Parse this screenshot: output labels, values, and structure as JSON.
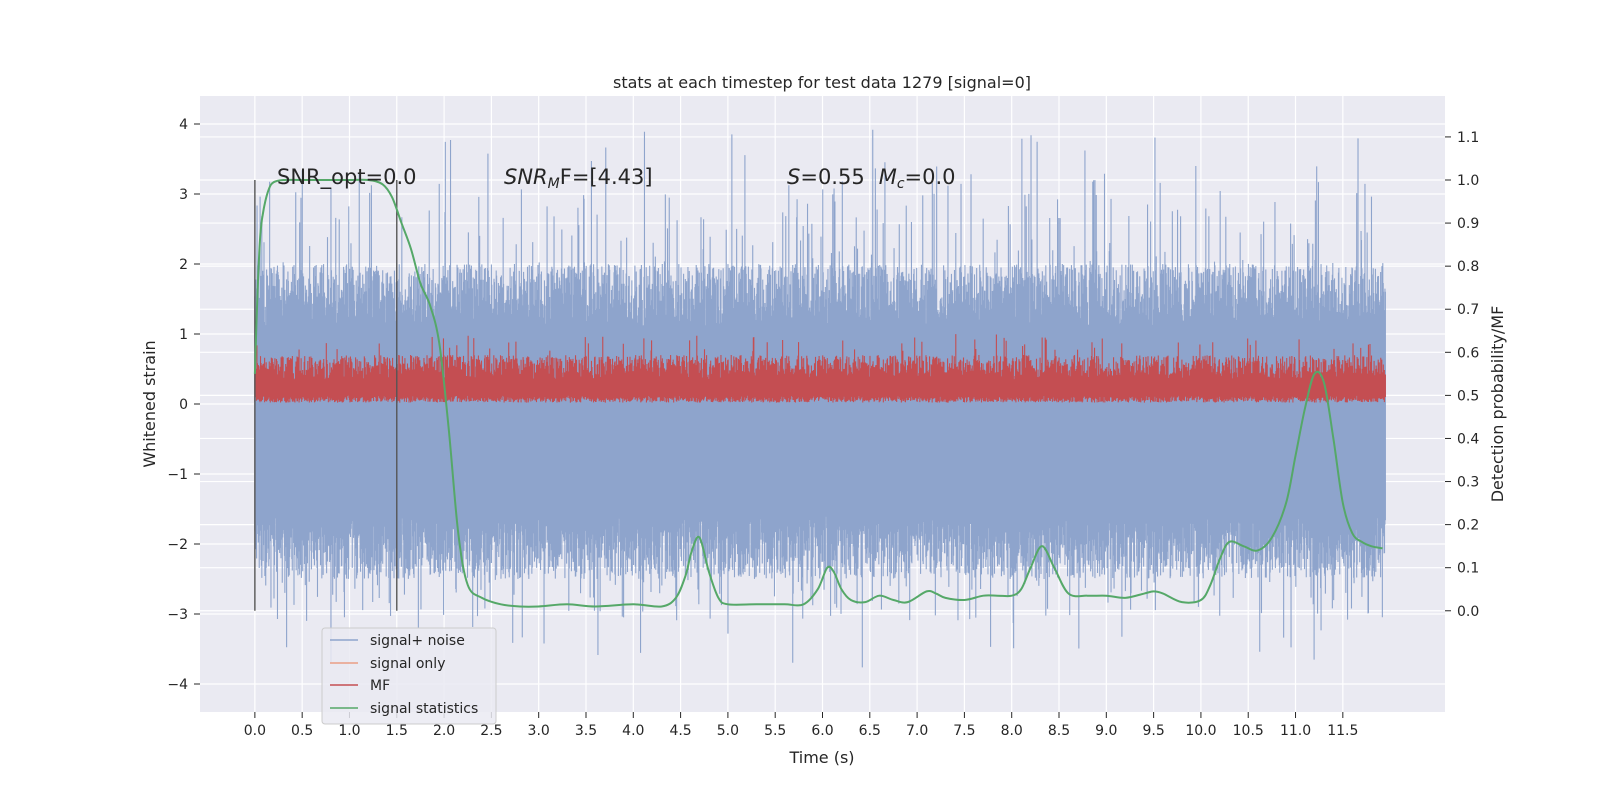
{
  "chart_data": {
    "type": "line",
    "title": "stats at each timestep for test data 1279 [signal=0]",
    "xlabel": "Time (s)",
    "ylabel": "Whitened strain",
    "y2label": "Detection probability/MF",
    "xlim": [
      -0.58,
      12.58
    ],
    "ylim": [
      -4.4,
      4.4
    ],
    "y2lim": [
      -0.235,
      1.195
    ],
    "xticks": [
      "0.0",
      "0.5",
      "1.0",
      "1.5",
      "2.0",
      "2.5",
      "3.0",
      "3.5",
      "4.0",
      "4.5",
      "5.0",
      "5.5",
      "6.0",
      "6.5",
      "7.0",
      "7.5",
      "8.0",
      "8.5",
      "9.0",
      "9.5",
      "10.0",
      "10.5",
      "11.0",
      "11.5"
    ],
    "yticks": [
      "4",
      "3",
      "2",
      "1",
      "0",
      "−1",
      "−2",
      "−3",
      "−4"
    ],
    "y2ticks": [
      "1.1",
      "1.0",
      "0.9",
      "0.8",
      "0.7",
      "0.6",
      "0.5",
      "0.4",
      "0.3",
      "0.2",
      "0.1",
      "0.0"
    ],
    "grid": true,
    "legend_position": "bottom-left",
    "annotations": {
      "snr_opt": "SNR_opt=0.0",
      "snr_mf_italic": "SNR",
      "snr_mf_sub": "M",
      "snr_mf_tail": "F=[4.43]",
      "s_italic": "S",
      "s_value": "=0.55",
      "mc_italic": "M",
      "mc_sub": "c",
      "mc_value": "=0.0"
    },
    "vertical_markers": [
      0.0,
      1.5
    ],
    "series": [
      {
        "name": "signal+ noise",
        "color": "#8ea4cc",
        "description_values": {
          "x_range": [
            0.0,
            11.95
          ],
          "band_core": [
            -1.8,
            1.3
          ],
          "spike_max": 4.1,
          "spike_min": -3.9
        }
      },
      {
        "name": "signal only",
        "color": "#e99e85",
        "values": []
      },
      {
        "name": "MF",
        "color": "#c44e52",
        "description_values": {
          "x_range": [
            0.0,
            11.95
          ],
          "band": [
            0.0,
            0.75
          ],
          "spike_max": 1.0
        }
      },
      {
        "name": "signal statistics",
        "color": "#55a868",
        "axis": "right",
        "x": [
          0.0,
          0.03,
          0.06,
          0.1,
          0.15,
          0.2,
          0.3,
          0.5,
          0.8,
          1.0,
          1.2,
          1.35,
          1.45,
          1.55,
          1.65,
          1.75,
          1.85,
          1.95,
          2.05,
          2.15,
          2.25,
          2.4,
          2.6,
          2.8,
          3.0,
          3.3,
          3.6,
          4.0,
          4.3,
          4.45,
          4.55,
          4.62,
          4.7,
          4.8,
          4.9,
          5.0,
          5.3,
          5.6,
          5.8,
          5.95,
          6.05,
          6.12,
          6.2,
          6.3,
          6.45,
          6.6,
          6.75,
          6.9,
          7.1,
          7.2,
          7.3,
          7.5,
          7.7,
          7.85,
          8.0,
          8.1,
          8.2,
          8.32,
          8.45,
          8.6,
          8.8,
          9.0,
          9.2,
          9.4,
          9.5,
          9.6,
          9.8,
          10.0,
          10.1,
          10.2,
          10.3,
          10.45,
          10.6,
          10.75,
          10.9,
          11.0,
          11.1,
          11.2,
          11.3,
          11.4,
          11.5,
          11.6,
          11.7,
          11.8,
          11.92
        ],
        "values": [
          0.55,
          0.75,
          0.88,
          0.94,
          0.98,
          0.995,
          1.0,
          1.0,
          1.0,
          1.0,
          1.0,
          0.99,
          0.96,
          0.9,
          0.84,
          0.76,
          0.71,
          0.62,
          0.42,
          0.18,
          0.06,
          0.03,
          0.015,
          0.01,
          0.01,
          0.015,
          0.01,
          0.015,
          0.01,
          0.03,
          0.08,
          0.14,
          0.17,
          0.09,
          0.03,
          0.015,
          0.015,
          0.015,
          0.015,
          0.05,
          0.1,
          0.09,
          0.05,
          0.025,
          0.02,
          0.035,
          0.025,
          0.02,
          0.045,
          0.04,
          0.03,
          0.025,
          0.035,
          0.035,
          0.035,
          0.05,
          0.1,
          0.15,
          0.1,
          0.04,
          0.035,
          0.035,
          0.03,
          0.04,
          0.045,
          0.04,
          0.02,
          0.025,
          0.06,
          0.12,
          0.16,
          0.15,
          0.14,
          0.17,
          0.25,
          0.36,
          0.47,
          0.55,
          0.53,
          0.4,
          0.25,
          0.18,
          0.16,
          0.15,
          0.145
        ]
      }
    ]
  },
  "legend": {
    "items": [
      "signal+ noise",
      "signal only",
      "MF",
      "signal statistics"
    ]
  }
}
